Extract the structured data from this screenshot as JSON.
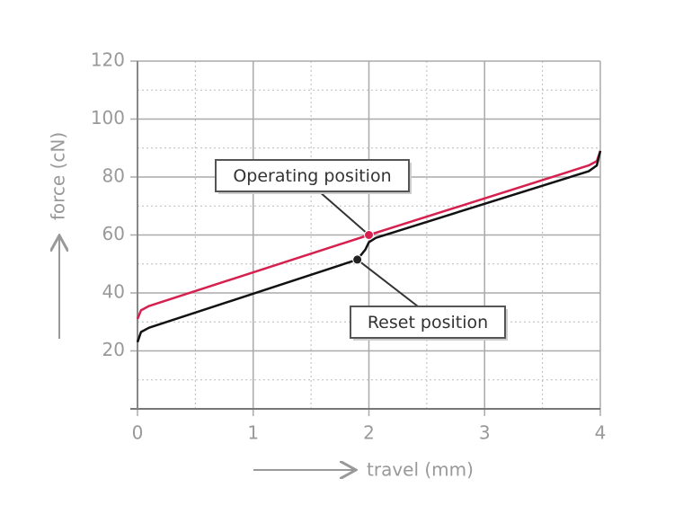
{
  "chart_data": {
    "type": "line",
    "x_label": "travel (mm)",
    "y_label": "force (cN)",
    "xlim": [
      0,
      4
    ],
    "ylim": [
      0,
      120
    ],
    "xticks": [
      0,
      1,
      2,
      3,
      4
    ],
    "yticks": [
      20,
      40,
      60,
      80,
      100,
      120
    ],
    "xminor": [
      0.5,
      1.5,
      2.5,
      3.5
    ],
    "yminor": [
      10,
      30,
      50,
      70,
      90,
      110
    ],
    "grid": true,
    "series": [
      {
        "color": "#d6204e",
        "x": [
          0,
          0.03,
          0.1,
          2,
          3.9,
          3.97,
          4
        ],
        "values": [
          31,
          34,
          35.5,
          60,
          84,
          85.5,
          89
        ]
      },
      {
        "color": "#111111",
        "x": [
          0,
          0.03,
          0.1,
          1.9,
          1.97,
          2.0,
          2.06,
          3.9,
          3.97,
          4
        ],
        "values": [
          23,
          26.5,
          28,
          51.5,
          55,
          57.5,
          59,
          82,
          84,
          89
        ]
      }
    ],
    "annotations": [
      {
        "text": "Operating position",
        "x": 2,
        "y": 60,
        "color": "#d6204e"
      },
      {
        "text": "Reset position",
        "x": 1.9,
        "y": 51.5,
        "color": "#222222"
      }
    ]
  }
}
